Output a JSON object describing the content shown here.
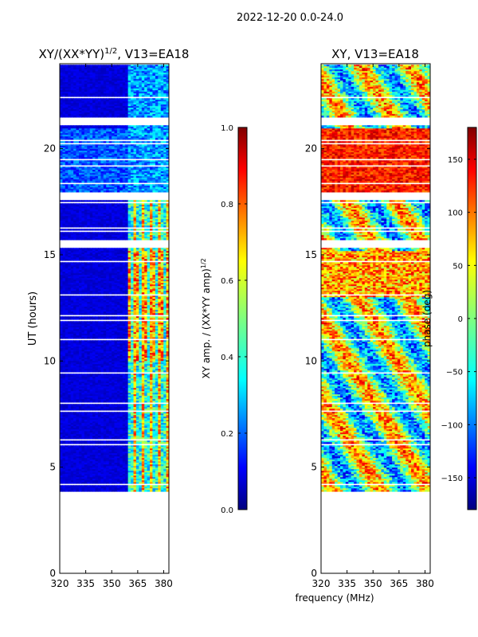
{
  "figure_title": "2022-12-20 0.0-24.0",
  "shared_xlabel": "frequency (MHz)",
  "chart_data": [
    {
      "type": "heatmap",
      "title": "XY/(XX*YY)^(1/2), V13=EA18",
      "title_parts": {
        "main": "XY/(XX*YY)",
        "exponent": "1/2",
        "suffix": ", V13=EA18"
      },
      "xlabel": "",
      "ylabel": "UT (hours)",
      "xlim": [
        320,
        383
      ],
      "ylim": [
        0,
        24
      ],
      "xticks": [
        320,
        335,
        350,
        365,
        380
      ],
      "yticks": [
        0,
        5,
        10,
        15,
        20
      ],
      "data_start_hour": 3.8,
      "data_end_hour": 23.95,
      "bright_band_mhz": [
        360,
        383
      ],
      "colorbar": {
        "label": "XY amp. / (XX*YY amp)",
        "label_exponent": "1/2",
        "range": [
          0.0,
          1.0
        ],
        "ticks": [
          0.0,
          0.2,
          0.4,
          0.6,
          0.8,
          1.0
        ],
        "tick_labels": [
          "0.0",
          "0.2",
          "0.4",
          "0.6",
          "0.8",
          "1.0"
        ],
        "colormap": "jet"
      }
    },
    {
      "type": "heatmap",
      "title": "XY, V13=EA18",
      "xlabel": "frequency (MHz)",
      "ylabel": "",
      "xlim": [
        320,
        383
      ],
      "ylim": [
        0,
        24
      ],
      "xticks": [
        320,
        335,
        350,
        365,
        380
      ],
      "yticks": [
        0,
        5,
        10,
        15,
        20
      ],
      "data_start_hour": 3.8,
      "data_end_hour": 23.95,
      "colorbar": {
        "label": "phase (deg)",
        "range": [
          -180,
          180
        ],
        "ticks": [
          -150,
          -100,
          -50,
          0,
          50,
          100,
          150
        ],
        "tick_labels": [
          "−150",
          "−100",
          "−50",
          "0",
          "50",
          "100",
          "150"
        ],
        "colormap": "jet"
      }
    }
  ],
  "colors": {
    "jet": [
      "#00007f",
      "#0000ff",
      "#007fff",
      "#00ffff",
      "#7fff7f",
      "#ffff00",
      "#ff7f00",
      "#ff0000",
      "#7f0000"
    ],
    "gap": "#ffffff",
    "axes": "#000000"
  }
}
